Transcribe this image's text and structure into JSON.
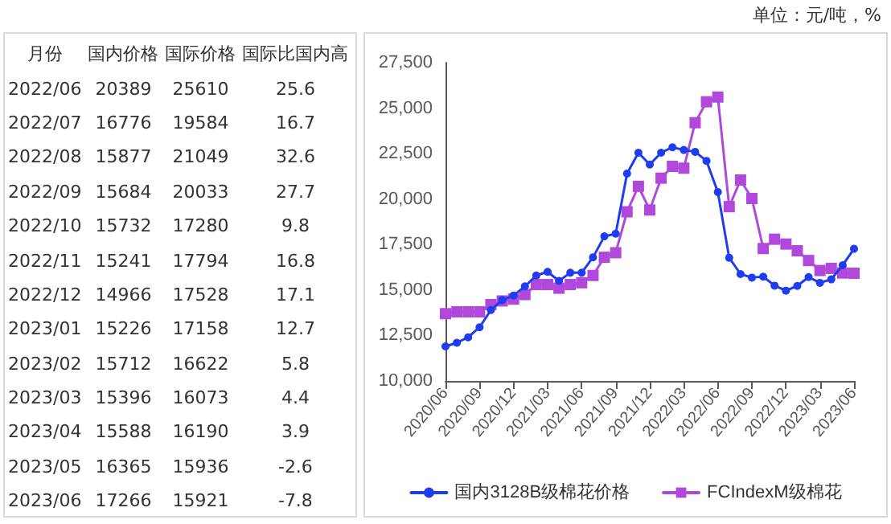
{
  "chart_data": [
    {
      "type": "other",
      "xlabel": "月份",
      "data_labels": true,
      "categories": [
        "2022/06",
        "2022/07",
        "2022/08",
        "2022/09",
        "2022/10",
        "2022/11",
        "2022/12",
        "2023/01",
        "2023/02",
        "2023/03",
        "2023/04",
        "2023/05",
        "2023/06"
      ],
      "series": [
        {
          "name": "国内价格",
          "values": [
            20389,
            16776,
            15877,
            15684,
            15732,
            15241,
            14966,
            15226,
            15712,
            15396,
            15588,
            16365,
            17266
          ]
        },
        {
          "name": "国际价格",
          "values": [
            25610,
            19584,
            21049,
            20033,
            17280,
            17794,
            17528,
            17158,
            16622,
            16073,
            16190,
            15936,
            15921
          ]
        },
        {
          "name": "国际比国内高",
          "values": [
            25.6,
            16.7,
            32.6,
            27.7,
            9.8,
            16.8,
            17.1,
            12.7,
            5.8,
            4.4,
            3.9,
            -2.6,
            -7.8
          ]
        }
      ]
    },
    {
      "type": "line",
      "subtitle": "单位：元/吨，%",
      "categories": [
        "2020/06",
        null,
        null,
        "2020/09",
        null,
        null,
        "2020/12",
        null,
        null,
        "2021/03",
        null,
        null,
        "2021/06",
        null,
        null,
        "2021/09",
        null,
        null,
        "2021/12",
        null,
        null,
        "2022/03",
        null,
        null,
        "2022/06",
        null,
        null,
        "2022/09",
        null,
        null,
        "2022/12",
        null,
        null,
        "2023/03",
        null,
        null,
        "2023/06"
      ],
      "series": [
        {
          "name": "国内3128B级棉花价格",
          "color": "#1f3cf0",
          "marker": "circle",
          "values": [
            11900,
            12100,
            12400,
            12950,
            13900,
            14450,
            14700,
            15200,
            15800,
            16000,
            15500,
            15950,
            15950,
            16800,
            17950,
            18100,
            21400,
            22550,
            21900,
            22550,
            22850,
            22700,
            22600,
            22100,
            20389,
            16776,
            15877,
            15684,
            15732,
            15241,
            14966,
            15226,
            15712,
            15396,
            15588,
            16365,
            17266
          ]
        },
        {
          "name": "FCIndexM级棉花",
          "color": "#b048dc",
          "marker": "square",
          "values": [
            13700,
            13800,
            13800,
            13800,
            14200,
            14400,
            14500,
            14750,
            15300,
            15300,
            15100,
            15300,
            15400,
            15800,
            16800,
            17050,
            19300,
            20700,
            19400,
            21150,
            21800,
            21700,
            24200,
            25350,
            25610,
            19584,
            21049,
            20033,
            17280,
            17794,
            17528,
            17158,
            16622,
            16073,
            16190,
            15936,
            15921
          ]
        }
      ],
      "ylim": [
        10000,
        27500
      ],
      "yticks": [
        {
          "value": 10000,
          "label": "10,000"
        },
        {
          "value": 12500,
          "label": "12,500"
        },
        {
          "value": 15000,
          "label": "15,000"
        },
        {
          "value": 17500,
          "label": "17,500"
        },
        {
          "value": 20000,
          "label": "20,000"
        },
        {
          "value": 22500,
          "label": "22,500"
        },
        {
          "value": 25000,
          "label": "25,000"
        },
        {
          "value": 27500,
          "label": "27,500"
        }
      ],
      "grid": false,
      "legend": "bottom",
      "line_style": "solid"
    }
  ]
}
